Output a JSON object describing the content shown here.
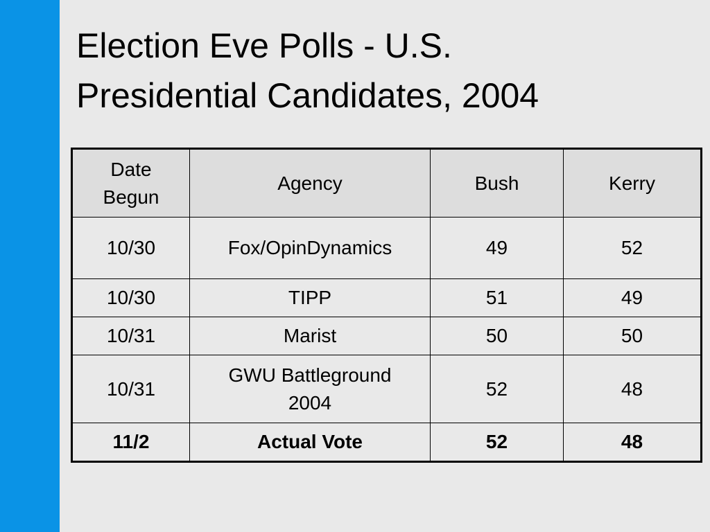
{
  "slide": {
    "title_line1": "Election Eve Polls - U.S.",
    "title_line2": "Presidential Candidates, 2004",
    "accent_color": "#0a93e6"
  },
  "table": {
    "headers": {
      "date_line1": "Date",
      "date_line2": "Begun",
      "agency": "Agency",
      "bush": "Bush",
      "kerry": "Kerry"
    },
    "rows": [
      {
        "date": "10/30",
        "agency": "Fox/OpinDynamics",
        "bush": "49",
        "kerry": "52"
      },
      {
        "date": "10/30",
        "agency": "TIPP",
        "bush": "51",
        "kerry": "49"
      },
      {
        "date": "10/31",
        "agency": "Marist",
        "bush": "50",
        "kerry": "50"
      },
      {
        "date": "10/31",
        "agency_line1": "GWU Battleground",
        "agency_line2": "2004",
        "bush": "52",
        "kerry": "48"
      },
      {
        "date": "11/2",
        "agency": "Actual Vote",
        "bush": "52",
        "kerry": "48"
      }
    ]
  }
}
